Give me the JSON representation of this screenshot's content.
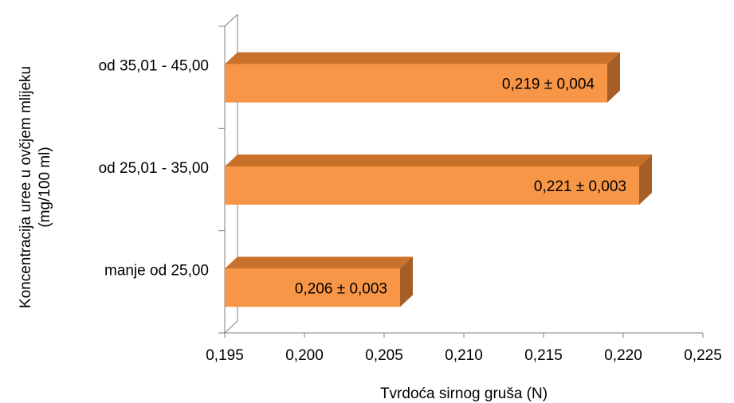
{
  "chart_data": {
    "type": "bar",
    "orientation": "horizontal",
    "style": "3d",
    "categories": [
      "manje od 25,00",
      "od 25,01 - 35,00",
      "od 35,01 - 45,00"
    ],
    "values": [
      0.206,
      0.221,
      0.219
    ],
    "data_labels": [
      "0,206 ± 0,003",
      "0,221 ± 0,003",
      "0,219 ± 0,004"
    ],
    "xlim": [
      0.195,
      0.225
    ],
    "x_ticks": [
      "0,195",
      "0,200",
      "0,205",
      "0,210",
      "0,215",
      "0,220",
      "0,225"
    ],
    "xlabel": "Tvrdoća sirnog gruša (N)",
    "ylabel_lines": [
      "Koncentracija uree u ovčjem mlijeku",
      "(mg/100 ml)"
    ],
    "grid": false,
    "legend": "none",
    "colors": {
      "bar_front": "#F79646",
      "bar_top": "#C9712A",
      "bar_side": "#A65E26",
      "axis": "#808080"
    }
  }
}
